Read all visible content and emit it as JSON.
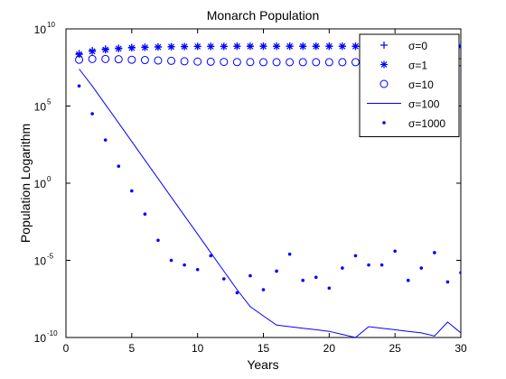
{
  "chart_data": {
    "type": "scatter",
    "title": "Monarch Population",
    "xlabel": "Years",
    "ylabel": "Population Logarithm",
    "xlim": [
      0,
      30
    ],
    "ylim_exp": [
      -10,
      10
    ],
    "y_scale": "log",
    "x_ticks": [
      0,
      5,
      10,
      15,
      20,
      25,
      30
    ],
    "y_ticks": [
      {
        "base": "10",
        "exp": "-10",
        "value_exp": -10
      },
      {
        "base": "10",
        "exp": "-5",
        "value_exp": -5
      },
      {
        "base": "10",
        "exp": "0",
        "value_exp": 0
      },
      {
        "base": "10",
        "exp": "5",
        "value_exp": 5
      },
      {
        "base": "10",
        "exp": "10",
        "value_exp": 10
      }
    ],
    "grid": false,
    "legend_position": "top-right",
    "series": [
      {
        "name": "σ=0",
        "marker": "plus",
        "color": "#0000ff",
        "x": [
          1,
          2,
          3,
          4,
          5,
          6,
          7,
          8,
          9,
          10,
          11,
          12,
          13,
          14,
          15,
          16,
          17,
          18,
          19,
          20,
          21,
          22,
          23,
          24,
          25,
          26,
          27,
          28,
          29,
          30
        ],
        "y_exp": [
          8.4,
          8.6,
          8.7,
          8.75,
          8.8,
          8.82,
          8.84,
          8.85,
          8.86,
          8.87,
          8.87,
          8.87,
          8.88,
          8.88,
          8.88,
          8.88,
          8.88,
          8.88,
          8.88,
          8.88,
          8.88,
          8.88,
          8.88,
          8.88,
          8.88,
          8.88,
          8.88,
          8.88,
          8.88,
          8.88
        ]
      },
      {
        "name": "σ=1",
        "marker": "star",
        "color": "#0000ff",
        "x": [
          1,
          2,
          3,
          4,
          5,
          6,
          7,
          8,
          9,
          10,
          11,
          12,
          13,
          14,
          15,
          16,
          17,
          18,
          19,
          20,
          21,
          22,
          23,
          24,
          25,
          26,
          27,
          28,
          29,
          30
        ],
        "y_exp": [
          8.35,
          8.55,
          8.65,
          8.72,
          8.77,
          8.8,
          8.82,
          8.84,
          8.85,
          8.86,
          8.86,
          8.86,
          8.87,
          8.87,
          8.87,
          8.87,
          8.87,
          8.87,
          8.87,
          8.87,
          8.87,
          8.87,
          8.87,
          8.87,
          8.87,
          8.87,
          8.87,
          8.87,
          8.87,
          8.87
        ]
      },
      {
        "name": "σ=10",
        "marker": "circle",
        "color": "#0000ff",
        "x": [
          1,
          2,
          3,
          4,
          5,
          6,
          7,
          8,
          9,
          10,
          11,
          12,
          13,
          14,
          15,
          16,
          17,
          18,
          19,
          20,
          21,
          22,
          23,
          24,
          25,
          26,
          27,
          28,
          29,
          30
        ],
        "y_exp": [
          8.0,
          8.05,
          8.05,
          8.03,
          8.0,
          7.98,
          7.95,
          7.93,
          7.9,
          7.88,
          7.87,
          7.86,
          7.85,
          7.85,
          7.84,
          7.84,
          7.84,
          7.84,
          7.84,
          7.84,
          7.84,
          7.84,
          7.84,
          7.84,
          7.84,
          7.84,
          7.84,
          7.84,
          7.84,
          7.84
        ]
      },
      {
        "name": "σ=100",
        "marker": "line",
        "color": "#0000ff",
        "x": [
          1,
          2,
          3,
          4,
          5,
          6,
          7,
          8,
          9,
          10,
          11,
          12,
          13,
          14,
          15,
          16,
          17,
          18,
          19,
          20,
          21,
          22,
          23,
          24,
          25,
          26,
          27,
          28,
          29,
          30
        ],
        "y_exp": [
          7.4,
          6.3,
          5.1,
          3.9,
          2.7,
          1.5,
          0.3,
          -0.9,
          -2.1,
          -3.3,
          -4.5,
          -5.7,
          -6.9,
          -8.0,
          -8.6,
          -9.2,
          -9.3,
          -9.4,
          -9.5,
          -9.6,
          -9.8,
          -10.0,
          -9.3,
          -9.4,
          -9.5,
          -9.6,
          -9.7,
          -9.9,
          -9.0,
          -9.7
        ]
      },
      {
        "name": "σ=1000",
        "marker": "dot",
        "color": "#0000ff",
        "x": [
          1,
          2,
          3,
          4,
          5,
          6,
          7,
          8,
          9,
          10,
          11,
          12,
          13,
          14,
          15,
          16,
          17,
          18,
          19,
          20,
          21,
          22,
          23,
          24,
          25,
          26,
          27,
          28,
          29,
          30
        ],
        "y_exp": [
          6.3,
          4.5,
          2.8,
          1.1,
          -0.5,
          -2.0,
          -3.7,
          -5.0,
          -5.3,
          -5.6,
          -4.7,
          -6.2,
          -7.1,
          -6.0,
          -6.9,
          -5.7,
          -4.6,
          -6.3,
          -6.1,
          -6.8,
          -5.5,
          -4.7,
          -5.3,
          -5.3,
          -4.4,
          -6.3,
          -5.5,
          -4.5,
          -6.4,
          -5.8
        ]
      }
    ]
  }
}
